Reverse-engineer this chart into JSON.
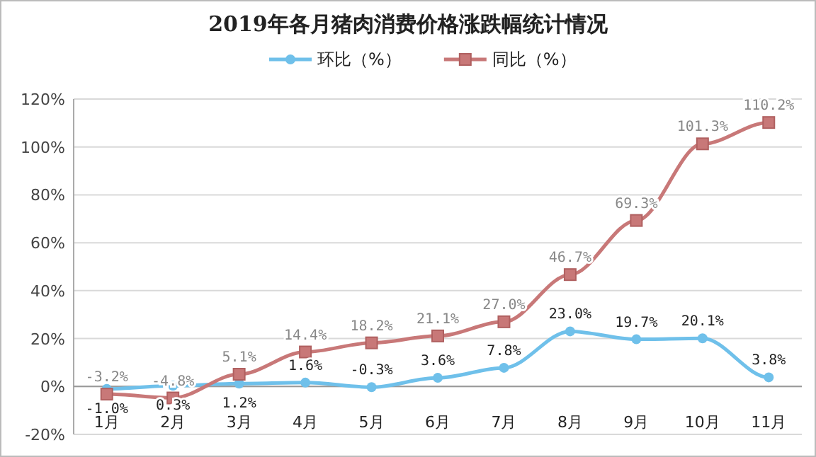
{
  "chart_data": {
    "type": "line",
    "title": "2019年各月猪肉消费价格涨跌幅统计情况",
    "categories": [
      "1月",
      "2月",
      "3月",
      "4月",
      "5月",
      "6月",
      "7月",
      "8月",
      "9月",
      "10月",
      "11月"
    ],
    "series": [
      {
        "name": "环比（%）",
        "color": "#6fc0ea",
        "marker": "circle",
        "values": [
          -1.0,
          0.3,
          1.2,
          1.6,
          -0.3,
          3.6,
          7.8,
          23.0,
          19.7,
          20.1,
          3.8
        ],
        "value_labels": [
          "-1.0%",
          "0.3%",
          "1.2%",
          "1.6%",
          "-0.3%",
          "3.6%",
          "7.8%",
          "23.0%",
          "19.7%",
          "20.1%",
          "3.8%"
        ]
      },
      {
        "name": "同比（%）",
        "color": "#c87878",
        "marker": "square",
        "values": [
          -3.2,
          -4.8,
          5.1,
          14.4,
          18.2,
          21.1,
          27.0,
          46.7,
          69.3,
          101.3,
          110.2
        ],
        "value_labels": [
          "-3.2%",
          "-4.8%",
          "5.1%",
          "14.4%",
          "18.2%",
          "21.1%",
          "27.0%",
          "46.7%",
          "69.3%",
          "101.3%",
          "110.2%"
        ]
      }
    ],
    "ylim": [
      -20,
      120
    ],
    "yticks": [
      {
        "value": -20,
        "label": "-20%"
      },
      {
        "value": 0,
        "label": "0%"
      },
      {
        "value": 20,
        "label": "20%"
      },
      {
        "value": 40,
        "label": "40%"
      },
      {
        "value": 60,
        "label": "60%"
      },
      {
        "value": 80,
        "label": "80%"
      },
      {
        "value": 100,
        "label": "100%"
      },
      {
        "value": 120,
        "label": "120%"
      }
    ],
    "grid": "y",
    "legend": "top"
  }
}
